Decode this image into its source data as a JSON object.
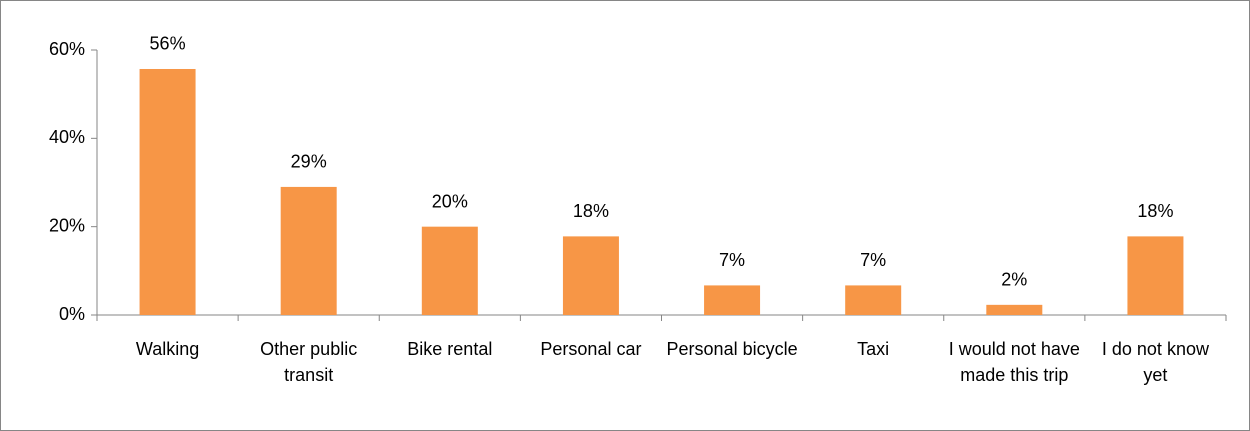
{
  "chart_data": {
    "type": "bar",
    "categories": [
      "Walking",
      "Other public transit",
      "Bike rental",
      "Personal car",
      "Personal bicycle",
      "Taxi",
      "I would not have made this trip",
      "I do not know yet"
    ],
    "values": [
      55.7,
      29,
      20,
      17.8,
      6.7,
      6.7,
      2.3,
      17.8
    ],
    "value_labels": [
      "56%",
      "29%",
      "20%",
      "18%",
      "7%",
      "7%",
      "2%",
      "18%"
    ],
    "color": "#f79646",
    "ylim": [
      0,
      60
    ],
    "yticks": [
      {
        "value": 0,
        "label": "0%"
      },
      {
        "value": 20,
        "label": "20%"
      },
      {
        "value": 40,
        "label": "40%"
      },
      {
        "value": 60,
        "label": "60%"
      }
    ],
    "grid": false
  }
}
